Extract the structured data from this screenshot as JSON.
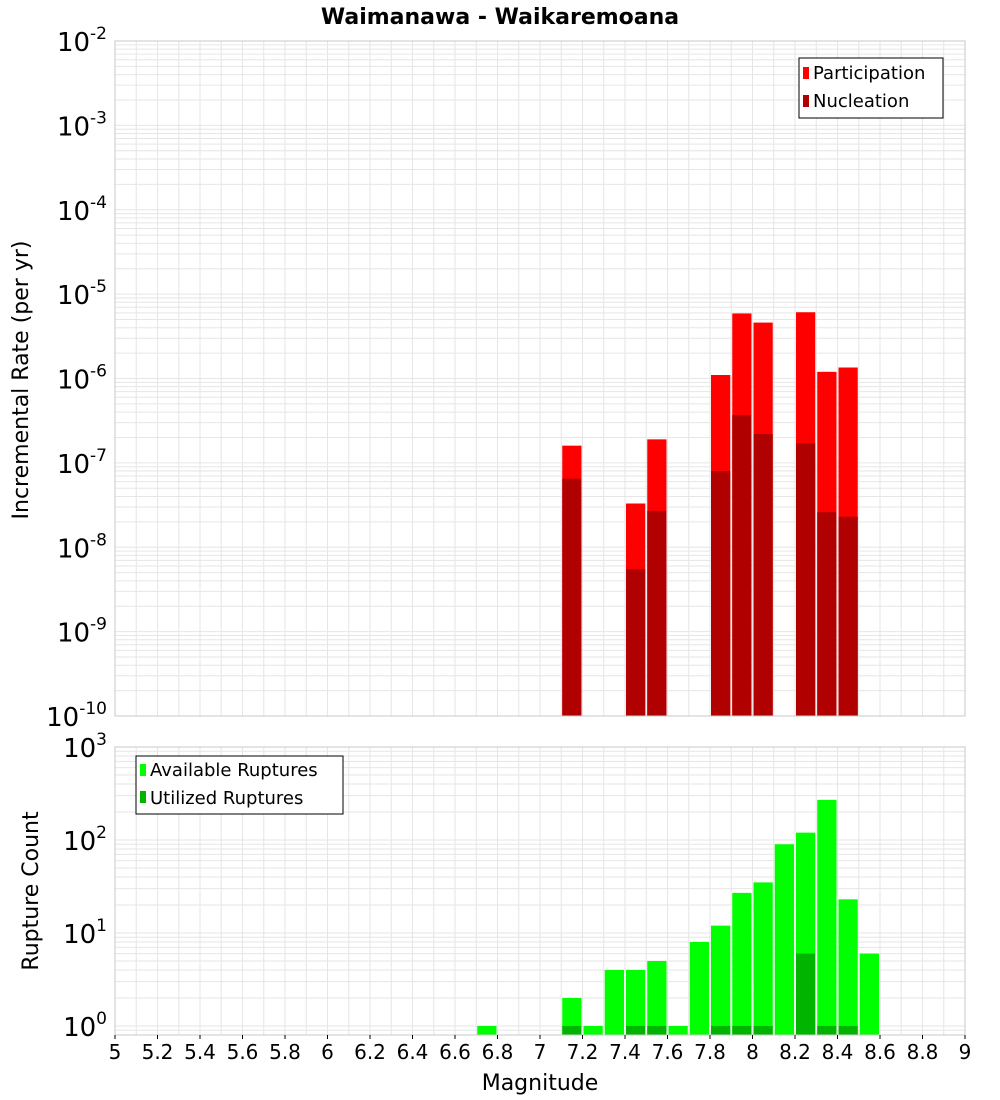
{
  "colors": {
    "participation": "#ff0000",
    "nucleation": "#b00000",
    "available": "#00ff00",
    "utilized": "#00b400",
    "grid": "#e6e6e6",
    "frame": "#c8c8c8"
  },
  "chart_data": [
    {
      "type": "bar",
      "title": "Waimanawa - Waikaremoana",
      "xlabel": "",
      "ylabel": "Incremental Rate (per yr)",
      "yscale": "log",
      "xlim": [
        5,
        9
      ],
      "ylim": [
        1e-10,
        0.01
      ],
      "y_ticks": [
        {
          "base": "10",
          "exp": "-10"
        },
        {
          "base": "10",
          "exp": "-9"
        },
        {
          "base": "10",
          "exp": "-8"
        },
        {
          "base": "10",
          "exp": "-7"
        },
        {
          "base": "10",
          "exp": "-6"
        },
        {
          "base": "10",
          "exp": "-5"
        },
        {
          "base": "10",
          "exp": "-4"
        },
        {
          "base": "10",
          "exp": "-3"
        },
        {
          "base": "10",
          "exp": "-2"
        }
      ],
      "legend": {
        "placement": "top-right"
      },
      "grid": true,
      "bar_width_mag": 0.1,
      "series": [
        {
          "name": "Participation",
          "x": [
            7.15,
            7.45,
            7.55,
            7.85,
            7.95,
            8.05,
            8.25,
            8.35,
            8.45
          ],
          "values": [
            1.6e-07,
            3.3e-08,
            1.9e-07,
            1.1e-06,
            5.9e-06,
            4.6e-06,
            6.1e-06,
            1.2e-06,
            1.35e-06
          ]
        },
        {
          "name": "Nucleation",
          "x": [
            7.15,
            7.45,
            7.55,
            7.85,
            7.95,
            8.05,
            8.25,
            8.35,
            8.45
          ],
          "values": [
            6.5e-08,
            5.5e-09,
            2.7e-08,
            8e-08,
            3.7e-07,
            2.2e-07,
            1.7e-07,
            2.6e-08,
            2.3e-08
          ]
        }
      ]
    },
    {
      "type": "bar",
      "title": "",
      "xlabel": "Magnitude",
      "ylabel": "Rupture Count",
      "yscale": "log",
      "xlim": [
        5,
        9
      ],
      "ylim": [
        0.8,
        1000
      ],
      "x_ticks": [
        "5",
        "5.2",
        "5.4",
        "5.6",
        "5.8",
        "6",
        "6.2",
        "6.4",
        "6.6",
        "6.8",
        "7",
        "7.2",
        "7.4",
        "7.6",
        "7.8",
        "8",
        "8.2",
        "8.4",
        "8.6",
        "8.8",
        "9"
      ],
      "y_ticks": [
        {
          "base": "10",
          "exp": "0"
        },
        {
          "base": "10",
          "exp": "1"
        },
        {
          "base": "10",
          "exp": "2"
        },
        {
          "base": "10",
          "exp": "3"
        }
      ],
      "legend": {
        "placement": "top-left"
      },
      "grid": true,
      "bar_width_mag": 0.1,
      "series": [
        {
          "name": "Available Ruptures",
          "x": [
            6.75,
            7.15,
            7.25,
            7.35,
            7.45,
            7.55,
            7.65,
            7.75,
            7.85,
            7.95,
            8.05,
            8.15,
            8.25,
            8.35,
            8.45,
            8.55
          ],
          "values": [
            1,
            2,
            1,
            4,
            4,
            5,
            1,
            8,
            12,
            27,
            35,
            90,
            120,
            270,
            23,
            6
          ]
        },
        {
          "name": "Utilized Ruptures",
          "x": [
            7.15,
            7.45,
            7.55,
            7.85,
            7.95,
            8.05,
            8.25,
            8.35,
            8.45
          ],
          "values": [
            1,
            1,
            1,
            1,
            1,
            1,
            6,
            1,
            1
          ]
        }
      ]
    }
  ]
}
